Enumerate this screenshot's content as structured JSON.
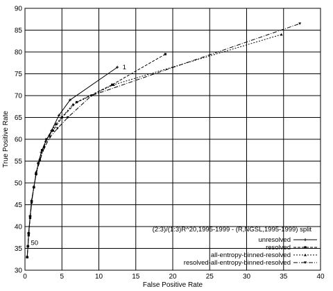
{
  "chart_data": {
    "type": "line",
    "title": "",
    "xlabel": "False Positive Rate",
    "ylabel": "True Positive Rate",
    "xlim": [
      0,
      40
    ],
    "ylim": [
      30,
      90
    ],
    "x_ticks": [
      0,
      5,
      10,
      15,
      20,
      25,
      30,
      35,
      40
    ],
    "y_ticks": [
      30,
      35,
      40,
      45,
      50,
      55,
      60,
      65,
      70,
      75,
      80,
      85,
      90
    ],
    "grid": true,
    "legend_position": "bottom-right",
    "legend_title": "(2:3)/(1:3)R^20,1995-1999 - (R,NGSL,1995-1999) split",
    "annotations": [
      {
        "text": "1",
        "x": 13.2,
        "y": 76.5
      },
      {
        "text": "50",
        "x": 0.8,
        "y": 36.3
      }
    ],
    "series": [
      {
        "name": "unresolved",
        "dash": "",
        "marker": "plus",
        "x": [
          0.3,
          0.4,
          0.5,
          0.7,
          0.9,
          1.2,
          1.5,
          1.8,
          2.2,
          2.8,
          3.6,
          4.6,
          6.1,
          12.5
        ],
        "y": [
          33.0,
          35.5,
          38.5,
          42.5,
          46.0,
          49.0,
          52.0,
          54.5,
          57.0,
          59.5,
          62.0,
          65.5,
          69.0,
          76.5
        ]
      },
      {
        "name": "resolved",
        "dash": "4,2",
        "marker": "square",
        "x": [
          0.3,
          0.4,
          0.5,
          0.7,
          0.9,
          1.2,
          1.5,
          1.8,
          2.3,
          2.9,
          3.8,
          5.0,
          7.0,
          11.8,
          19.0
        ],
        "y": [
          33.0,
          35.5,
          38.0,
          42.0,
          45.5,
          49.0,
          52.0,
          54.5,
          57.5,
          60.0,
          62.0,
          65.0,
          68.5,
          72.5,
          79.5
        ]
      },
      {
        "name": "all-entropy-binned-resolved",
        "dash": "2,2",
        "marker": "triangle",
        "x": [
          0.3,
          0.4,
          0.5,
          0.7,
          0.9,
          1.2,
          1.5,
          2.0,
          2.6,
          3.3,
          4.2,
          6.5,
          12.0,
          34.7
        ],
        "y": [
          33.0,
          35.5,
          38.5,
          42.5,
          46.0,
          49.0,
          52.5,
          55.5,
          58.5,
          61.0,
          63.5,
          68.0,
          72.5,
          84.0
        ]
      },
      {
        "name": "resolved-all-entropy-binned-resolved",
        "dash": "6,2,1,2",
        "marker": "triangle-down",
        "x": [
          0.3,
          0.4,
          0.5,
          0.7,
          0.9,
          1.2,
          1.5,
          2.0,
          2.6,
          3.4,
          4.4,
          5.8,
          9.0,
          37.2
        ],
        "y": [
          33.0,
          35.5,
          38.5,
          42.0,
          45.5,
          49.0,
          52.0,
          55.0,
          58.0,
          60.5,
          62.5,
          65.0,
          70.0,
          86.5
        ]
      }
    ]
  }
}
